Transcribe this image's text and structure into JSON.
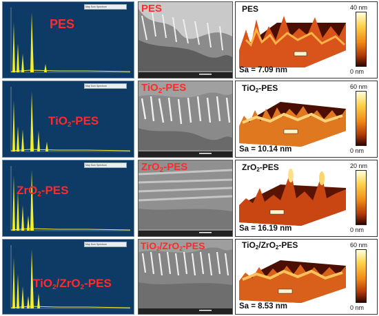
{
  "rows": [
    {
      "edx": {
        "label": "PES",
        "label_html": false
      },
      "sem": {
        "label": "PES"
      },
      "afm": {
        "label": "PES",
        "sa": "Sa = 7.09 nm",
        "scale_max": "40 nm",
        "scale_min": "0 nm"
      }
    },
    {
      "edx": {
        "label_parts": [
          "TiO",
          "2",
          "-PES"
        ]
      },
      "sem": {
        "label_parts": [
          "TiO",
          "2",
          "-PES"
        ]
      },
      "afm": {
        "label_parts": [
          "TiO",
          "2",
          "-PES"
        ],
        "sa": "Sa = 10.14 nm",
        "scale_max": "60 nm",
        "scale_min": "0 nm"
      }
    },
    {
      "edx": {
        "label_parts": [
          "ZrO",
          "2",
          "-PES"
        ]
      },
      "sem": {
        "label_parts": [
          "ZrO",
          "2",
          "-PES"
        ]
      },
      "afm": {
        "label_parts": [
          "ZrO",
          "2",
          "-PES"
        ],
        "sa": "Sa = 16.19 nm",
        "scale_max": "20 nm",
        "scale_min": "0 nm"
      }
    },
    {
      "edx": {
        "label_parts": [
          "TiO",
          "2",
          "/ZrO",
          "2",
          "-PES"
        ]
      },
      "sem": {
        "label_parts": [
          "TiO",
          "2",
          "/ZrO",
          "2",
          "-PES"
        ]
      },
      "afm": {
        "label_parts": [
          "TiO",
          "2",
          "/ZrO",
          "2",
          "-PES"
        ],
        "sa": "Sa = 8.53 nm",
        "scale_max": "60 nm",
        "scale_min": "0 nm"
      }
    }
  ],
  "edx_table_title": "Map Sum Spectrum",
  "colors": {
    "edx_bg": "#0d3b66",
    "edx_peaks": "#f5ee2a",
    "label_red": "#ff2a2a"
  }
}
